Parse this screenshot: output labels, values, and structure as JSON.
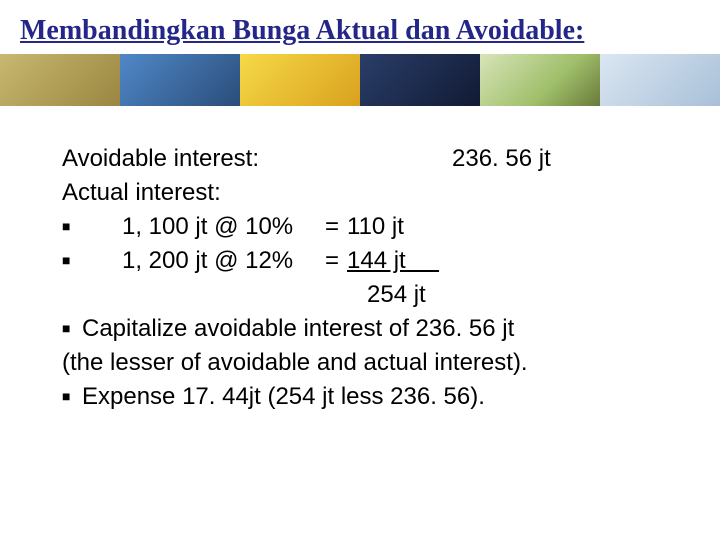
{
  "title": "Membandingkan Bunga Aktual dan Avoidable:",
  "content": {
    "avoidable_label": "Avoidable interest:",
    "avoidable_value": "236. 56 jt",
    "actual_label": "Actual interest:",
    "rows": [
      {
        "label": "1, 100 jt @ 10%",
        "eq": "=",
        "value": "110 jt"
      },
      {
        "label": "1, 200 jt @ 12%",
        "eq": "=",
        "value": "144 jt     "
      }
    ],
    "sum": "254 jt",
    "capitalize": "Capitalize avoidable interest of 236. 56 jt",
    "lesser": "(the lesser of avoidable and actual interest).",
    "expense": "Expense 17. 44jt (254 jt less 236. 56)."
  },
  "bullet": "■"
}
